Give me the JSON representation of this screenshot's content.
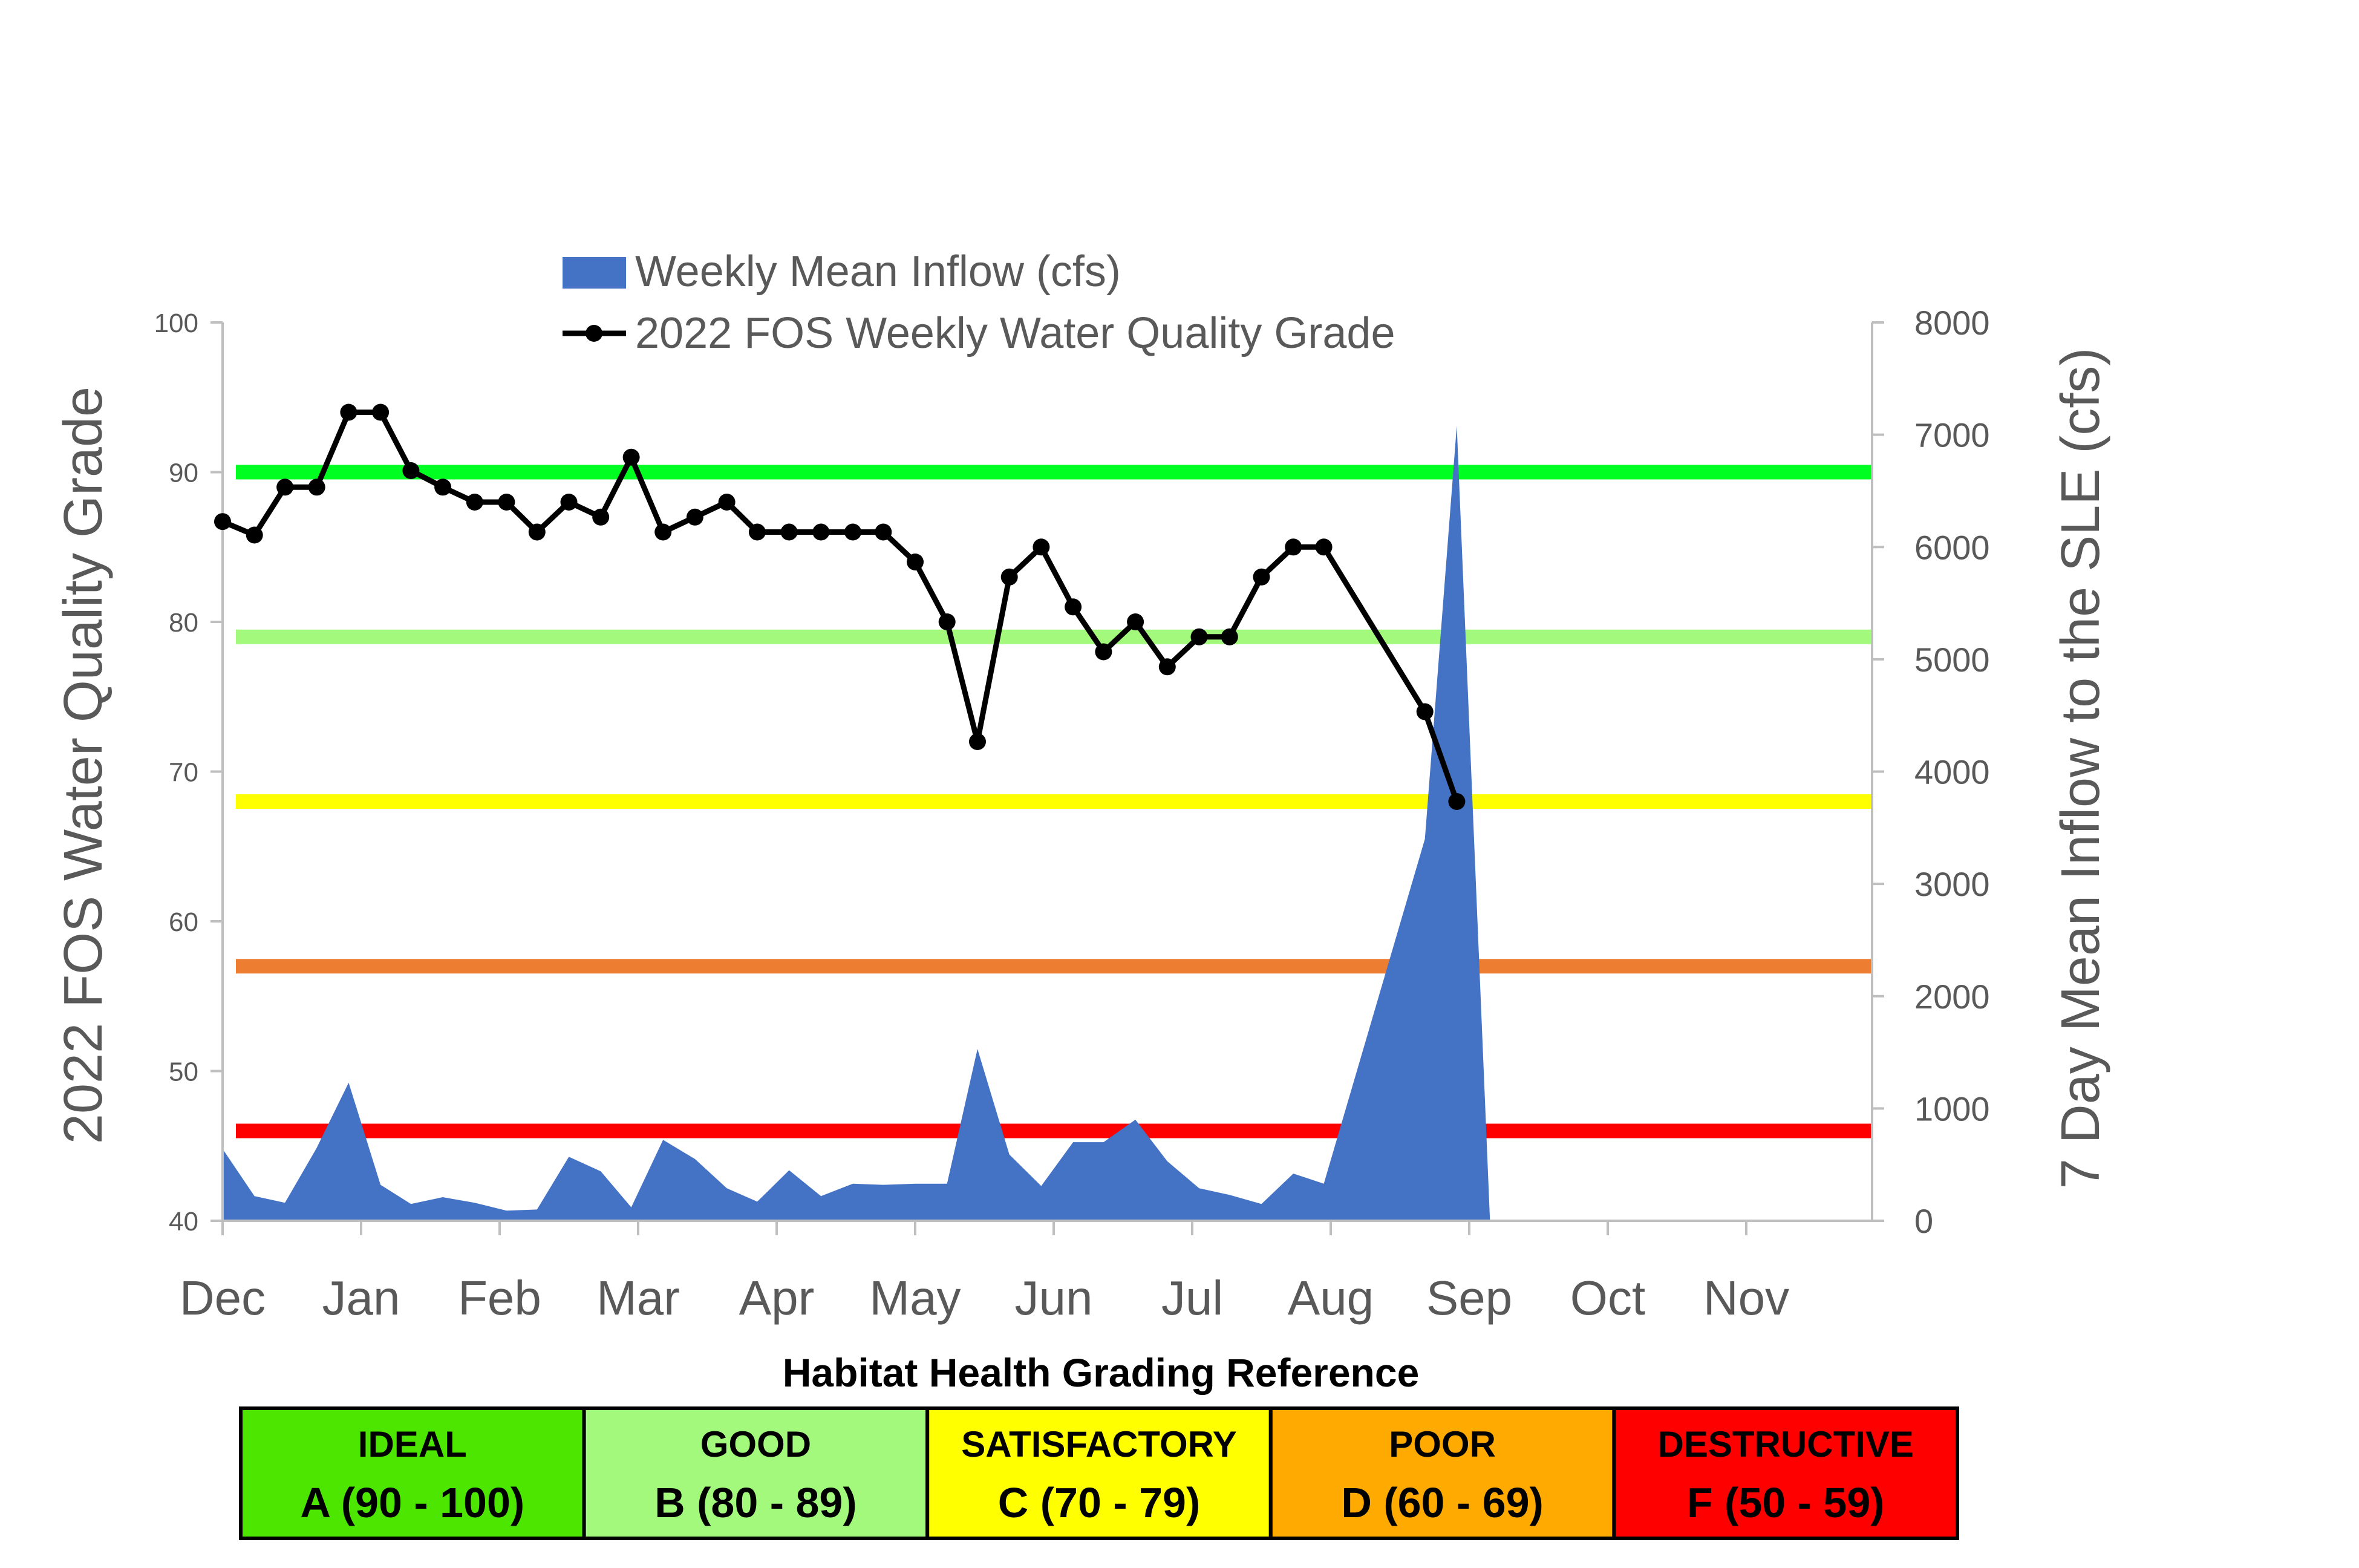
{
  "chart_data": {
    "type": "line",
    "x_labels": [
      "Dec",
      "Jan",
      "Feb",
      "Mar",
      "Apr",
      "May",
      "Jun",
      "Jul",
      "Aug",
      "Sep",
      "Oct",
      "Nov"
    ],
    "left_axis": {
      "label": "2022 FOS Water Quality Grade",
      "ylim": [
        40,
        100
      ],
      "ticks": [
        "40",
        "50",
        "60",
        "70",
        "80",
        "90",
        "100"
      ]
    },
    "right_axis": {
      "label": "7 Day Mean Inflow to the SLE (cfs)",
      "ylim": [
        0,
        8000
      ],
      "ticks": [
        "0",
        "1000",
        "2000",
        "3000",
        "4000",
        "5000",
        "6000",
        "7000",
        "8000"
      ]
    },
    "legend": {
      "position": "top",
      "items": [
        "Weekly Mean Inflow (cfs)",
        "2022 FOS Weekly Water Quality Grade"
      ]
    },
    "grade_series": {
      "name": "2022 FOS Weekly Water Quality Grade",
      "color": "#000000",
      "x": [
        0,
        0.23,
        0.45,
        0.68,
        0.91,
        1.14,
        1.36,
        1.59,
        1.82,
        2.05,
        2.27,
        2.5,
        2.73,
        2.95,
        3.18,
        3.41,
        3.64,
        3.86,
        4.09,
        4.32,
        4.55,
        4.77,
        5.0,
        5.23,
        5.45,
        5.68,
        5.91,
        6.14,
        6.36,
        6.59,
        6.82,
        7.05,
        7.27,
        7.5,
        7.73,
        7.95,
        8.68,
        8.91
      ],
      "y": [
        86.7,
        85.8,
        89.0,
        89.0,
        94.0,
        94.0,
        90.1,
        89.0,
        88.0,
        88.0,
        86.0,
        88.0,
        87.0,
        91.0,
        86.0,
        87.0,
        88.0,
        86.0,
        86.0,
        86.0,
        86.0,
        86.0,
        84.0,
        80.0,
        72.0,
        83.0,
        85.0,
        81.0,
        78.0,
        80.0,
        77.0,
        79.0,
        79.0,
        83.0,
        85.0,
        85.0,
        74.0,
        68.0
      ]
    },
    "inflow_series": {
      "name": "Weekly Mean Inflow (cfs)",
      "color": "#4472C4",
      "x": [
        0,
        0.23,
        0.45,
        0.68,
        0.91,
        1.14,
        1.36,
        1.59,
        1.82,
        2.05,
        2.27,
        2.5,
        2.73,
        2.95,
        3.18,
        3.41,
        3.64,
        3.86,
        4.09,
        4.32,
        4.55,
        4.77,
        5.0,
        5.23,
        5.45,
        5.68,
        5.91,
        6.14,
        6.36,
        6.59,
        6.82,
        7.05,
        7.27,
        7.5,
        7.73,
        7.95,
        8.68,
        8.91,
        9.15
      ],
      "y": [
        640,
        220,
        160,
        650,
        1230,
        320,
        150,
        210,
        160,
        90,
        100,
        570,
        440,
        120,
        720,
        550,
        290,
        170,
        450,
        220,
        330,
        320,
        330,
        330,
        1530,
        590,
        310,
        700,
        700,
        900,
        530,
        290,
        230,
        150,
        420,
        330,
        3400,
        7080,
        0
      ]
    },
    "grade_bands": [
      {
        "grade": 90,
        "color": "#00FF21"
      },
      {
        "grade": 79,
        "color": "#A3F97C"
      },
      {
        "grade": 68,
        "color": "#FFFF00"
      },
      {
        "grade": 57,
        "color": "#ED7D31"
      },
      {
        "grade": 46,
        "color": "#FF0000"
      }
    ]
  },
  "reference": {
    "title": "Habitat Health Grading Reference",
    "cells": [
      {
        "name": "IDEAL",
        "range": "A (90 - 100)",
        "color": "#4CE600",
        "text_color": "#000000"
      },
      {
        "name": "GOOD",
        "range": "B (80 - 89)",
        "color": "#A3F97C",
        "text_color": "#000000"
      },
      {
        "name": "SATISFACTORY",
        "range": "C (70 - 79)",
        "color": "#FFFF00",
        "text_color": "#000000"
      },
      {
        "name": "POOR",
        "range": "D (60 - 69)",
        "color": "#FFAA00",
        "text_color": "#000000"
      },
      {
        "name": "DESTRUCTIVE",
        "range": "F (50 - 59)",
        "color": "#FF0000",
        "text_color": "#000000"
      }
    ]
  }
}
